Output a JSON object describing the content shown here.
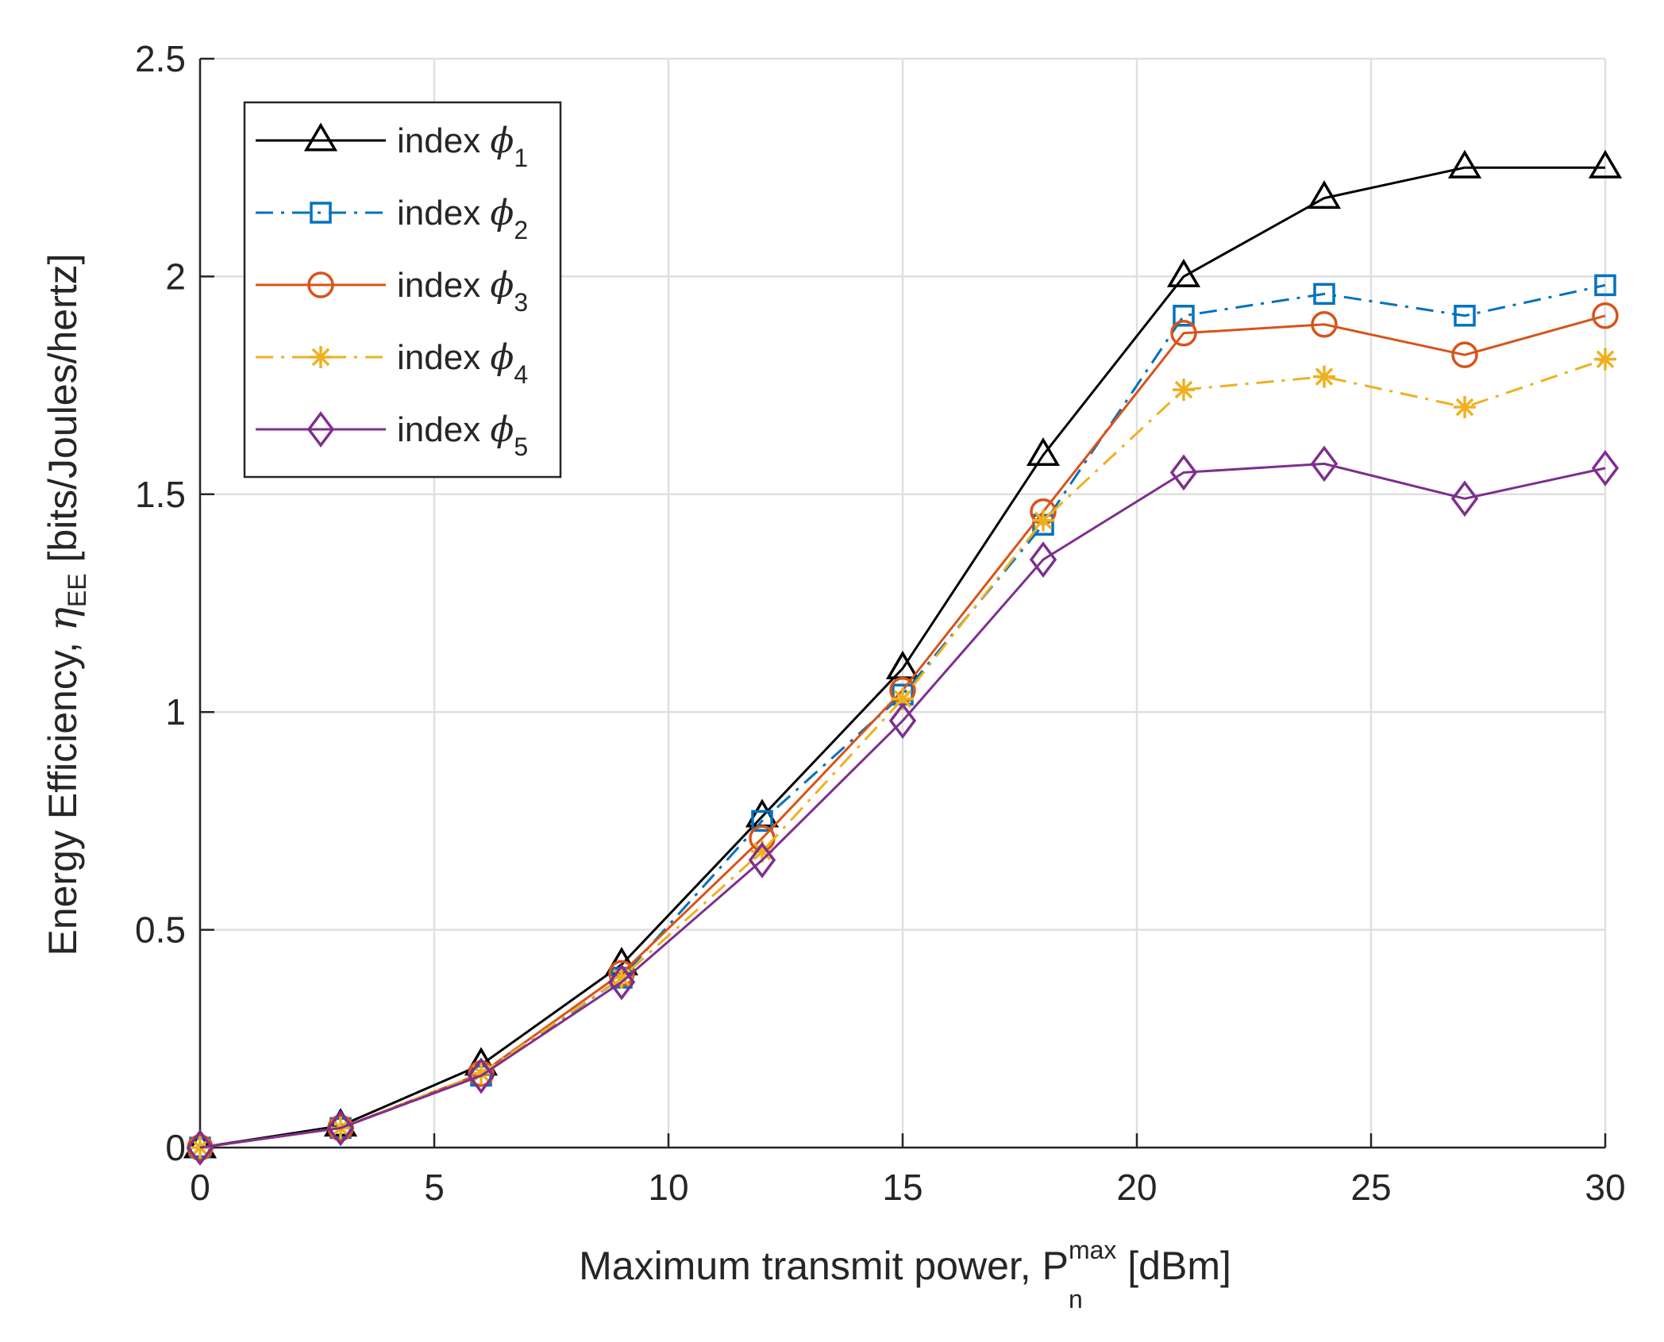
{
  "chart_data": {
    "type": "line",
    "title": "",
    "xlabel": {
      "main": "Maximum transmit power, P",
      "sub": "n",
      "sup": "max",
      "unit": " [dBm]"
    },
    "ylabel": {
      "main": "Energy Efficiency, ",
      "symbol": "η",
      "sub": "EE",
      "unit": " [bits/Joules/hertz]"
    },
    "xlim": [
      0,
      30
    ],
    "ylim": [
      0,
      2.5
    ],
    "xticks": [
      0,
      5,
      10,
      15,
      20,
      25,
      30
    ],
    "xtick_labels": [
      "0",
      "5",
      "10",
      "15",
      "20",
      "25",
      "30"
    ],
    "yticks": [
      0,
      0.5,
      1,
      1.5,
      2,
      2.5
    ],
    "ytick_labels": [
      "0",
      "0.5",
      "1",
      "1.5",
      "2",
      "2.5"
    ],
    "grid": true,
    "legend_position": "top-left",
    "x": [
      0,
      3,
      6,
      9,
      12,
      15,
      18,
      21,
      24,
      27,
      30
    ],
    "series": [
      {
        "name": "index ",
        "symbol": "ϕ",
        "sub": "1",
        "color": "#000000",
        "marker": "triangle",
        "dash": "solid",
        "values": [
          0.0,
          0.05,
          0.19,
          0.42,
          0.76,
          1.1,
          1.59,
          2.0,
          2.18,
          2.25,
          2.25
        ]
      },
      {
        "name": "index ",
        "symbol": "ϕ",
        "sub": "2",
        "color": "#0072BD",
        "marker": "square",
        "dash": "dashdot",
        "values": [
          0.0,
          0.045,
          0.165,
          0.39,
          0.75,
          1.04,
          1.43,
          1.91,
          1.96,
          1.91,
          1.98
        ]
      },
      {
        "name": "index ",
        "symbol": "ϕ",
        "sub": "3",
        "color": "#D95319",
        "marker": "circle",
        "dash": "solid",
        "values": [
          0.0,
          0.045,
          0.17,
          0.4,
          0.71,
          1.05,
          1.46,
          1.87,
          1.89,
          1.82,
          1.91
        ]
      },
      {
        "name": "index ",
        "symbol": "ϕ",
        "sub": "4",
        "color": "#EDB120",
        "marker": "star",
        "dash": "dashdot",
        "values": [
          0.0,
          0.045,
          0.17,
          0.39,
          0.68,
          1.03,
          1.44,
          1.74,
          1.77,
          1.7,
          1.81
        ]
      },
      {
        "name": "index ",
        "symbol": "ϕ",
        "sub": "5",
        "color": "#7E2F8E",
        "marker": "diamond",
        "dash": "solid",
        "values": [
          0.0,
          0.045,
          0.165,
          0.38,
          0.66,
          0.98,
          1.35,
          1.55,
          1.57,
          1.49,
          1.56
        ]
      }
    ]
  }
}
